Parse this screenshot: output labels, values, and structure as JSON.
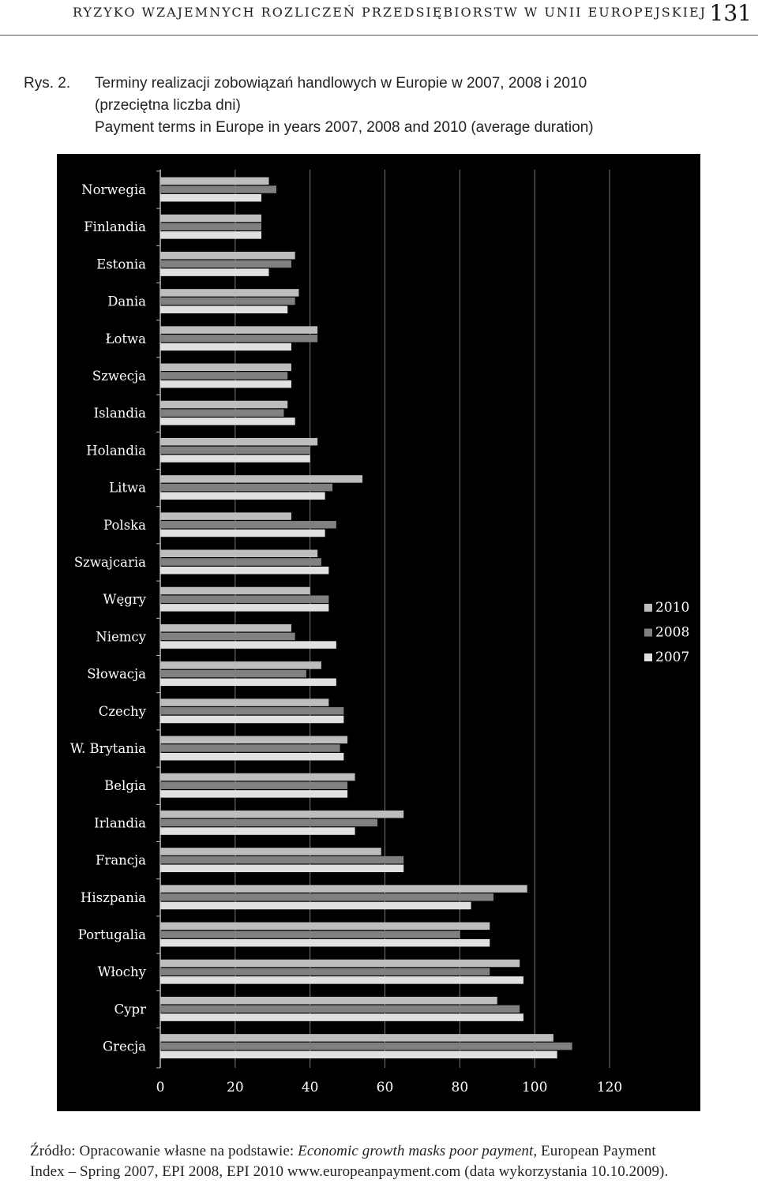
{
  "header": {
    "running_title": "RYZYKO WZAJEMNYCH ROZLICZEŃ PRZEDSIĘBIORSTW W UNII EUROPEJSKIEJ",
    "page_number": "131"
  },
  "caption": {
    "label": "Rys. 2.",
    "title_pl_line1": "Terminy realizacji zobowiązań handlowych w Europie w 2007, 2008 i 2010",
    "title_pl_line2": "(przeciętna liczba dni)",
    "title_en": "Payment terms in Europe in years 2007, 2008 and 2010 (average duration)"
  },
  "source": {
    "prefix": "Źródło: Opracowanie własne na podstawie: ",
    "italic_title": "Economic growth masks poor payment",
    "rest_line1": ", European Payment",
    "line2": "Index – Spring 2007, EPI 2008, EPI 2010 www.europeanpayment.com (data wykorzystania 10.10.2009)."
  },
  "colors": {
    "background": "#000000",
    "2010": "#bdbdbd",
    "2008": "#808080",
    "2007": "#e0e0e0",
    "grid": "#7a7a7a",
    "text": "#ffffff"
  },
  "chart_data": {
    "type": "bar",
    "orientation": "horizontal",
    "categories": [
      "Norwegia",
      "Finlandia",
      "Estonia",
      "Dania",
      "Łotwa",
      "Szwecja",
      "Islandia",
      "Holandia",
      "Litwa",
      "Polska",
      "Szwajcaria",
      "Węgry",
      "Niemcy",
      "Słowacja",
      "Czechy",
      "W. Brytania",
      "Belgia",
      "Irlandia",
      "Francja",
      "Hiszpania",
      "Portugalia",
      "Włochy",
      "Cypr",
      "Grecja"
    ],
    "series": [
      {
        "name": "2010",
        "values": [
          29,
          27,
          36,
          37,
          42,
          35,
          34,
          42,
          54,
          35,
          42,
          40,
          35,
          43,
          45,
          50,
          52,
          65,
          59,
          98,
          88,
          96,
          90,
          105
        ]
      },
      {
        "name": "2008",
        "values": [
          31,
          27,
          35,
          36,
          42,
          34,
          33,
          40,
          46,
          47,
          43,
          45,
          36,
          39,
          49,
          48,
          50,
          58,
          65,
          89,
          80,
          88,
          96,
          110
        ]
      },
      {
        "name": "2007",
        "values": [
          27,
          27,
          29,
          34,
          35,
          35,
          36,
          40,
          44,
          44,
          45,
          45,
          47,
          47,
          49,
          49,
          50,
          52,
          65,
          83,
          88,
          97,
          97,
          106
        ]
      }
    ],
    "xlim": [
      0,
      120
    ],
    "xticks": [
      "0",
      "20",
      "40",
      "60",
      "80",
      "100",
      "120"
    ],
    "grid": true,
    "legend_position": "right"
  }
}
